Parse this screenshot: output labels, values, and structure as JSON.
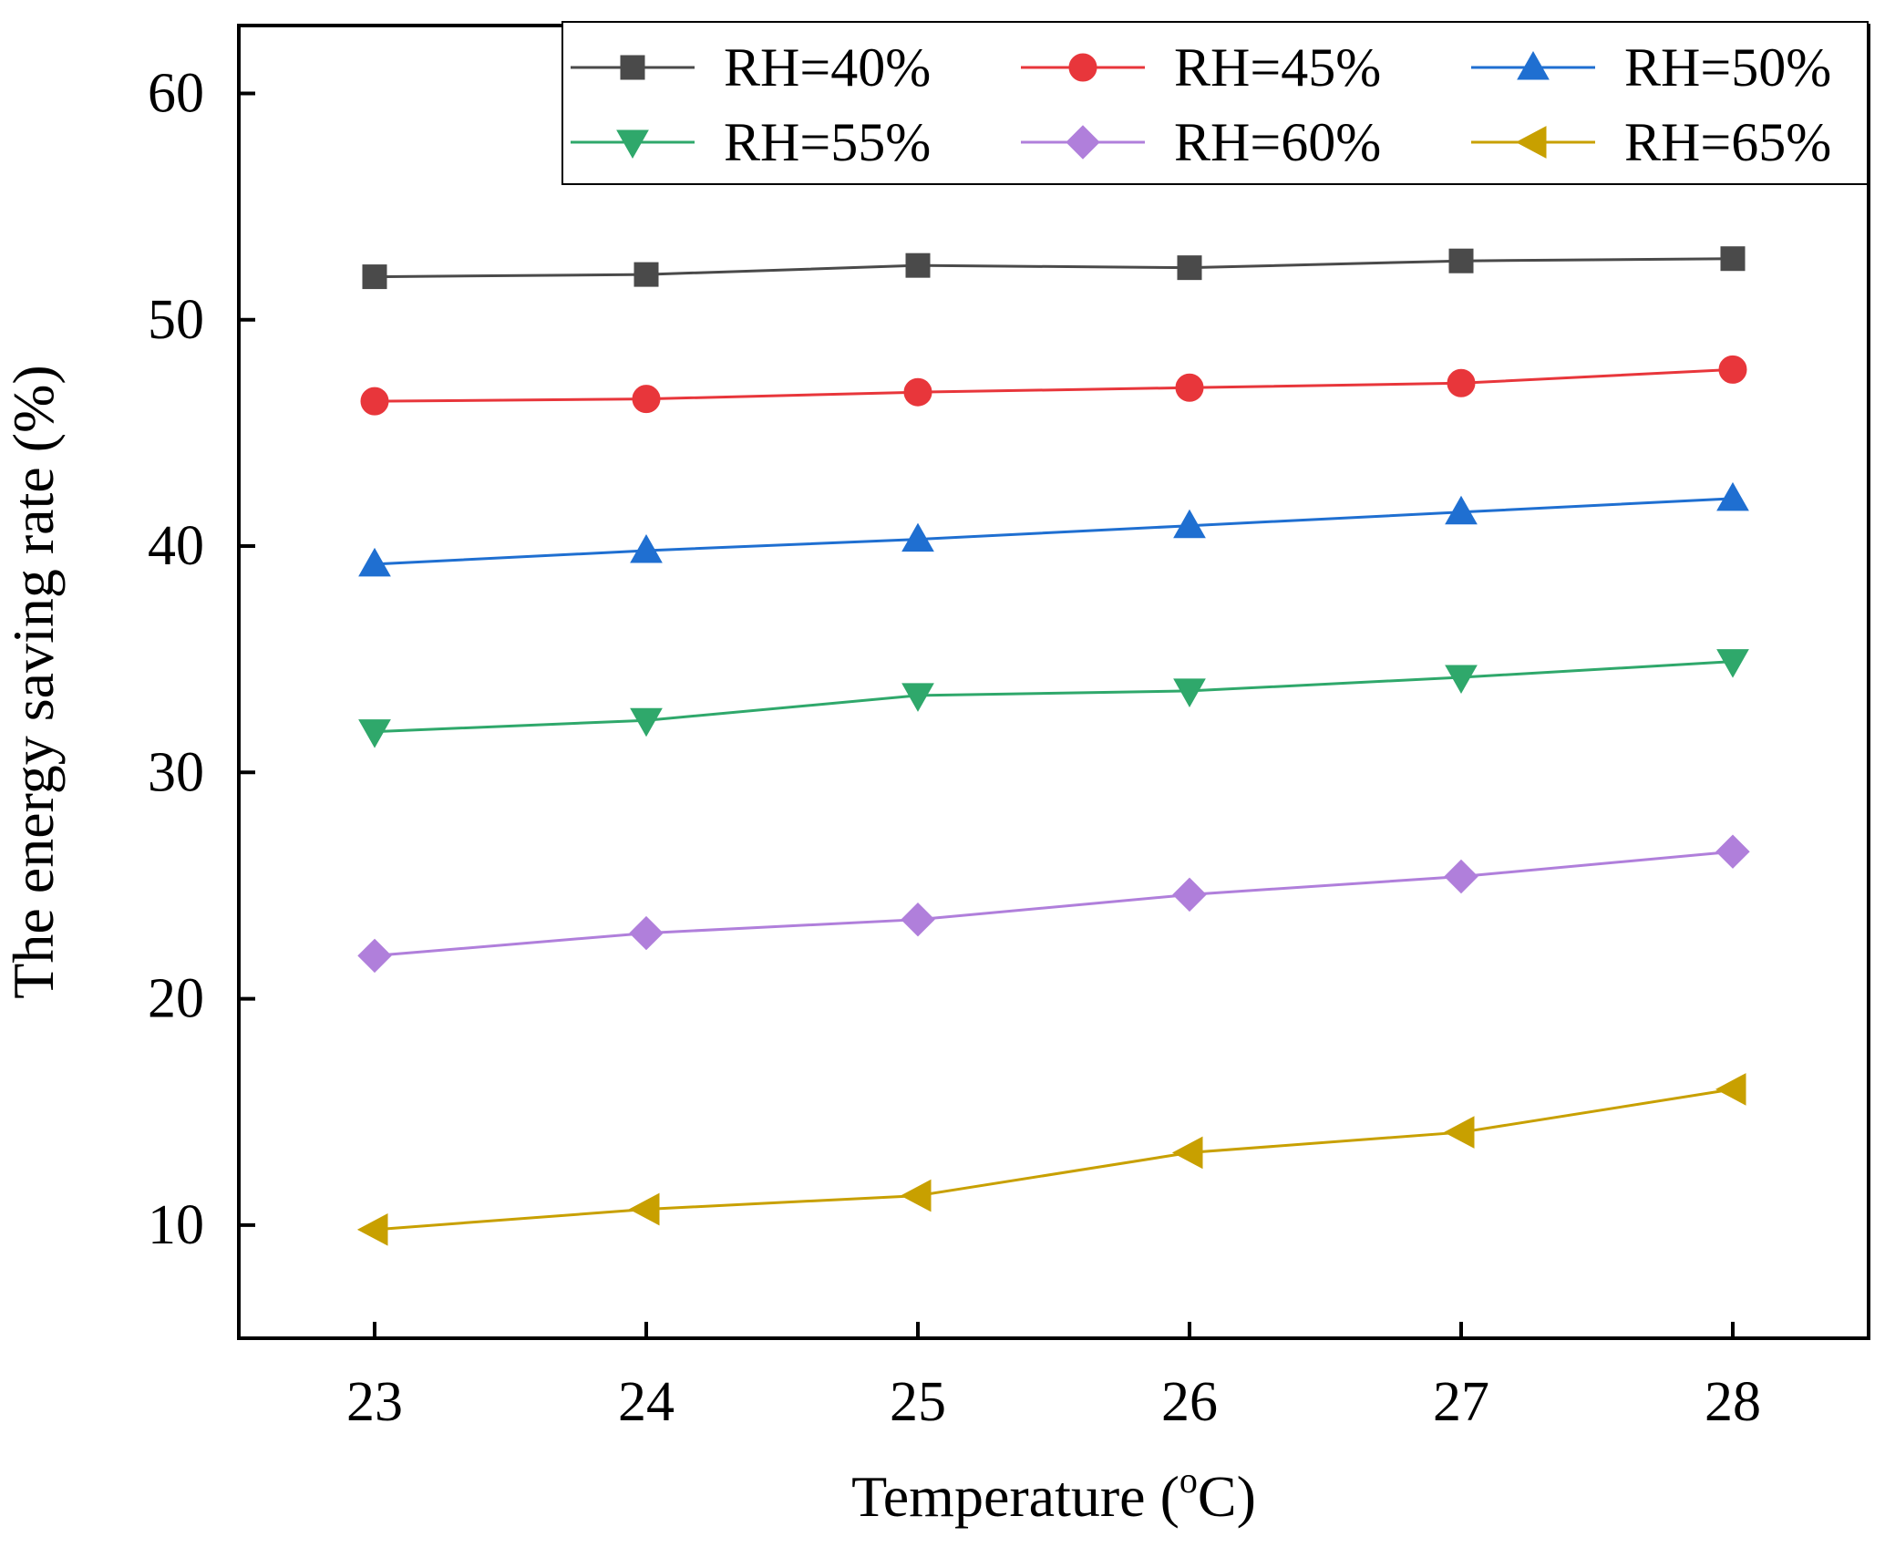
{
  "chart_data": {
    "type": "line",
    "xlabel": "Temperature (",
    "xlabel_sup": "o",
    "xlabel_unit": "C)",
    "ylabel": "The energy saving rate (%)",
    "x": [
      23,
      24,
      25,
      26,
      27,
      28
    ],
    "x_tick_labels": [
      "23",
      "24",
      "25",
      "26",
      "27",
      "28"
    ],
    "xlim": [
      22.5,
      28.5
    ],
    "ylim": [
      5,
      63
    ],
    "y_ticks": [
      10,
      20,
      30,
      40,
      50,
      60
    ],
    "y_tick_labels": [
      "10",
      "20",
      "30",
      "40",
      "50",
      "60"
    ],
    "grid": false,
    "legend_position": "top-right",
    "series": [
      {
        "name": "RH=40%",
        "marker": "square",
        "color": "#4a4a4a",
        "values": [
          51.9,
          52.0,
          52.4,
          52.3,
          52.6,
          52.7
        ]
      },
      {
        "name": "RH=45%",
        "marker": "circle",
        "color": "#e8363b",
        "values": [
          46.4,
          46.5,
          46.8,
          47.0,
          47.2,
          47.8
        ]
      },
      {
        "name": "RH=50%",
        "marker": "triangle-up",
        "color": "#1f6fd1",
        "values": [
          39.2,
          39.8,
          40.3,
          40.9,
          41.5,
          42.1
        ]
      },
      {
        "name": "RH=55%",
        "marker": "triangle-down",
        "color": "#2fa86b",
        "values": [
          31.8,
          32.3,
          33.4,
          33.6,
          34.2,
          34.9
        ]
      },
      {
        "name": "RH=60%",
        "marker": "diamond",
        "color": "#b07fdb",
        "values": [
          21.9,
          22.9,
          23.5,
          24.6,
          25.4,
          26.5
        ]
      },
      {
        "name": "RH=65%",
        "marker": "triangle-left",
        "color": "#c8a000",
        "values": [
          9.8,
          10.7,
          11.3,
          13.2,
          14.1,
          16.0
        ]
      }
    ]
  }
}
